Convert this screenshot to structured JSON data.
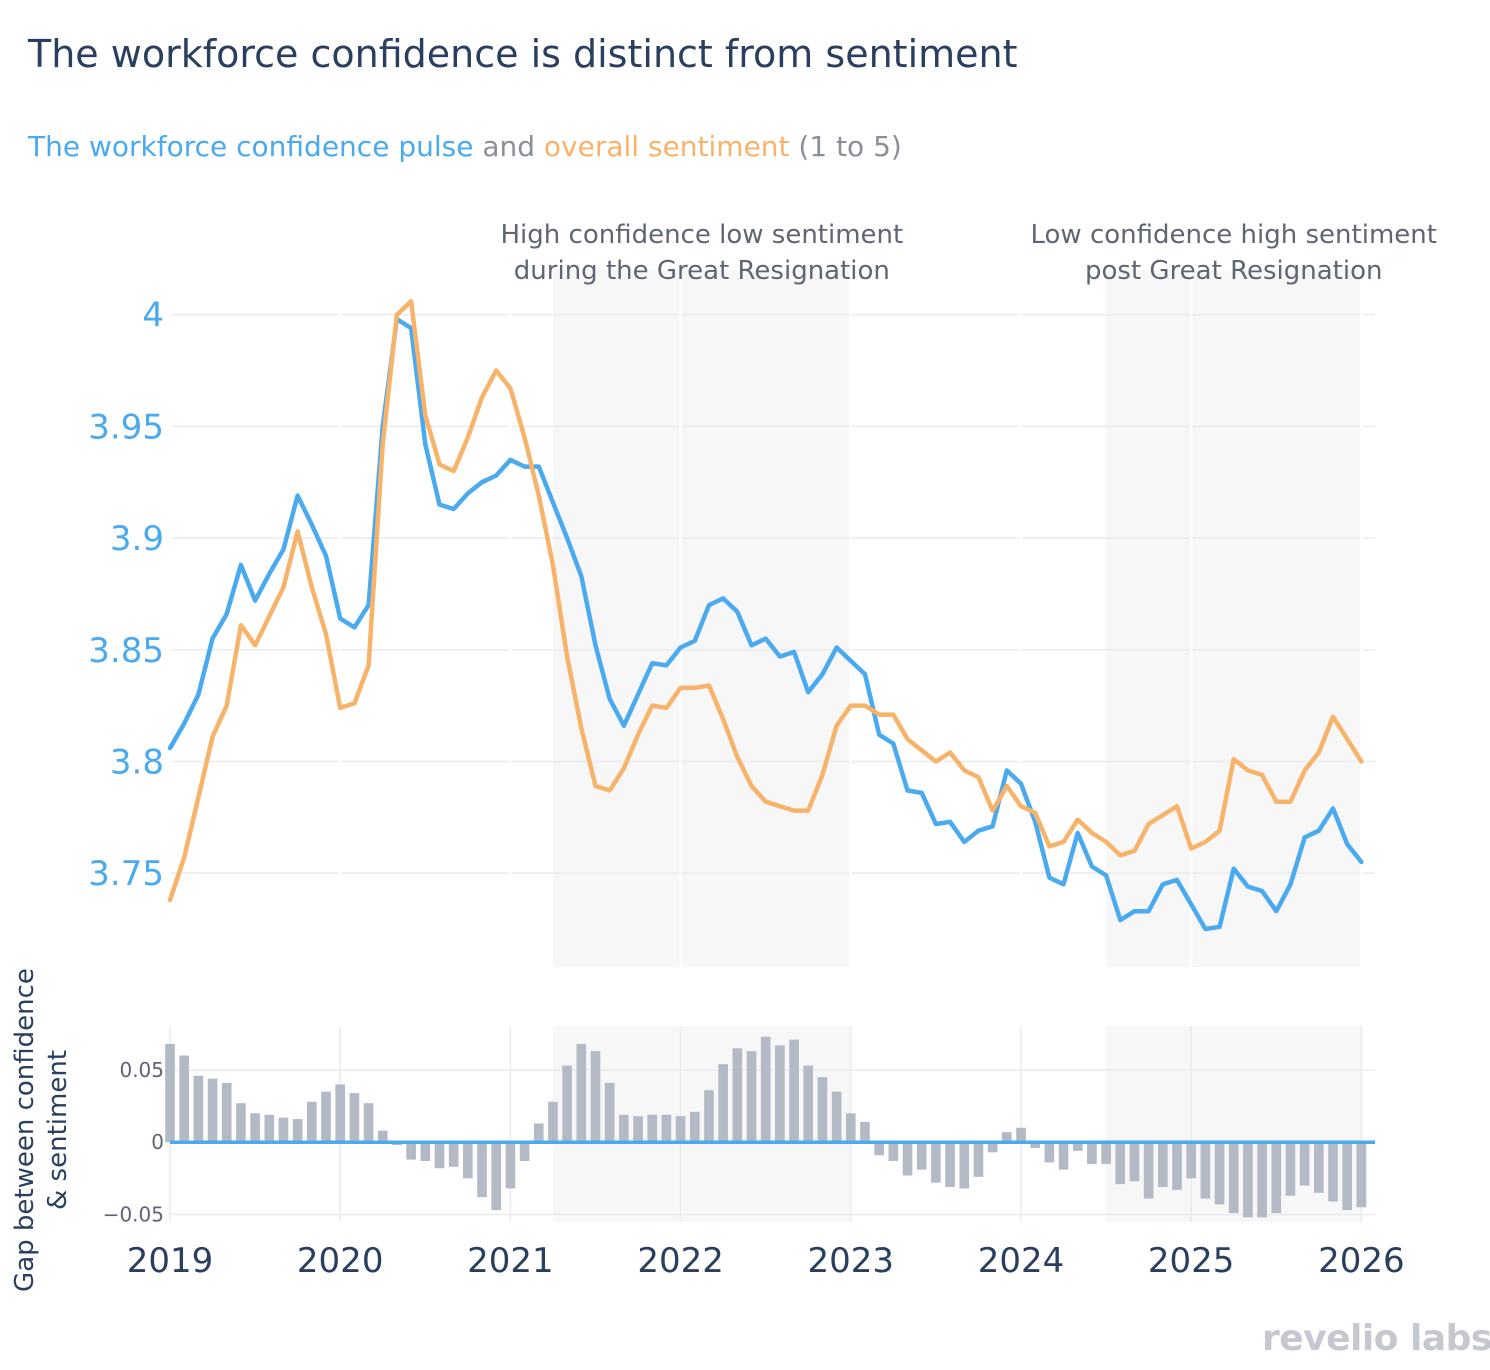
{
  "title": "The workforce confidence is distinct from sentiment",
  "subtitle": {
    "part1": "The workforce confidence pulse",
    "part2": " and ",
    "part3": "overall sentiment",
    "part4": " (1 to 5)"
  },
  "logo": "revelio labs",
  "colors": {
    "confidence": "#4aaaf0",
    "sentiment": "#f8b36b",
    "gap": "#b4b9c6",
    "shade": "#f7f7f8",
    "title": "#2a3f5f",
    "grid": "#e9ebef"
  },
  "chart_data": {
    "type": "line",
    "title": "The workforce confidence is distinct from sentiment",
    "subtitle": "The workforce confidence pulse and overall sentiment (1 to 5)",
    "start": "2019-01",
    "frequency": "monthly",
    "main_yticks": [
      "3.75",
      "3.8",
      "3.85",
      "3.9",
      "3.95",
      "4"
    ],
    "main_ytick_values": [
      3.75,
      3.8,
      3.85,
      3.9,
      3.95,
      4.0
    ],
    "main_ylim": [
      3.708,
      4.02
    ],
    "xticks": [
      "2019",
      "2020",
      "2021",
      "2022",
      "2023",
      "2024",
      "2025",
      "2026"
    ],
    "xtick_values": [
      2019,
      2020,
      2021,
      2022,
      2023,
      2024,
      2025,
      2026
    ],
    "xlim": [
      2019,
      2026.08
    ],
    "gap_yticks": [
      "−0.05",
      "0",
      "0.05"
    ],
    "gap_ytick_values": [
      -0.05,
      0,
      0.05
    ],
    "gap_ylim": [
      -0.0552,
      0.0804
    ],
    "gap_ylabel": [
      "Gap between confidence",
      "& sentiment"
    ],
    "shaded_regions": [
      {
        "label": [
          "High confidence low sentiment",
          "during the Great Resignation"
        ],
        "x0": 2021.25,
        "x1": 2023.0
      },
      {
        "label": [
          "Low confidence high sentiment",
          "post Great Resignation"
        ],
        "x0": 2024.5,
        "x1": 2026.0
      }
    ],
    "series": [
      {
        "name": "Workforce confidence pulse",
        "values": [
          3.806,
          3.817,
          3.83,
          3.855,
          3.866,
          3.888,
          3.872,
          3.884,
          3.895,
          3.919,
          3.906,
          3.892,
          3.864,
          3.86,
          3.87,
          3.95,
          3.998,
          3.994,
          3.942,
          3.915,
          3.913,
          3.92,
          3.925,
          3.928,
          3.935,
          3.932,
          3.932,
          3.916,
          3.9,
          3.883,
          3.852,
          3.828,
          3.816,
          3.83,
          3.844,
          3.843,
          3.851,
          3.854,
          3.87,
          3.873,
          3.867,
          3.852,
          3.855,
          3.847,
          3.849,
          3.831,
          3.839,
          3.851,
          3.845,
          3.839,
          3.812,
          3.808,
          3.787,
          3.786,
          3.772,
          3.773,
          3.764,
          3.769,
          3.771,
          3.796,
          3.79,
          3.773,
          3.748,
          3.745,
          3.768,
          3.753,
          3.749,
          3.729,
          3.733,
          3.733,
          3.745,
          3.747,
          3.736,
          3.725,
          3.726,
          3.752,
          3.744,
          3.742,
          3.733,
          3.745,
          3.766,
          3.769,
          3.779,
          3.763,
          3.755
        ]
      },
      {
        "name": "Overall sentiment",
        "values": [
          3.738,
          3.757,
          3.784,
          3.811,
          3.825,
          3.861,
          3.852,
          3.865,
          3.878,
          3.903,
          3.878,
          3.857,
          3.824,
          3.826,
          3.843,
          3.942,
          4.0,
          4.006,
          3.955,
          3.933,
          3.93,
          3.945,
          3.963,
          3.975,
          3.967,
          3.945,
          3.919,
          3.888,
          3.847,
          3.815,
          3.789,
          3.787,
          3.797,
          3.812,
          3.825,
          3.824,
          3.833,
          3.833,
          3.834,
          3.819,
          3.802,
          3.789,
          3.782,
          3.78,
          3.778,
          3.778,
          3.794,
          3.816,
          3.825,
          3.825,
          3.821,
          3.821,
          3.81,
          3.805,
          3.8,
          3.804,
          3.796,
          3.793,
          3.778,
          3.789,
          3.78,
          3.777,
          3.762,
          3.764,
          3.774,
          3.768,
          3.764,
          3.758,
          3.76,
          3.772,
          3.776,
          3.78,
          3.761,
          3.764,
          3.769,
          3.801,
          3.796,
          3.794,
          3.782,
          3.782,
          3.796,
          3.804,
          3.82,
          3.81,
          3.8
        ]
      },
      {
        "name": "Gap between confidence & sentiment",
        "values": [
          0.068,
          0.06,
          0.046,
          0.044,
          0.041,
          0.027,
          0.02,
          0.019,
          0.017,
          0.016,
          0.028,
          0.035,
          0.04,
          0.034,
          0.027,
          0.008,
          -0.002,
          -0.012,
          -0.013,
          -0.018,
          -0.017,
          -0.025,
          -0.038,
          -0.047,
          -0.032,
          -0.013,
          0.013,
          0.028,
          0.053,
          0.068,
          0.063,
          0.041,
          0.019,
          0.018,
          0.019,
          0.019,
          0.018,
          0.021,
          0.036,
          0.054,
          0.065,
          0.063,
          0.073,
          0.067,
          0.071,
          0.053,
          0.045,
          0.035,
          0.02,
          0.014,
          -0.009,
          -0.013,
          -0.023,
          -0.019,
          -0.028,
          -0.031,
          -0.032,
          -0.024,
          -0.007,
          0.007,
          0.01,
          -0.004,
          -0.014,
          -0.019,
          -0.006,
          -0.015,
          -0.015,
          -0.029,
          -0.027,
          -0.039,
          -0.031,
          -0.033,
          -0.025,
          -0.039,
          -0.043,
          -0.049,
          -0.052,
          -0.052,
          -0.049,
          -0.037,
          -0.03,
          -0.035,
          -0.041,
          -0.047,
          -0.045
        ]
      }
    ]
  }
}
